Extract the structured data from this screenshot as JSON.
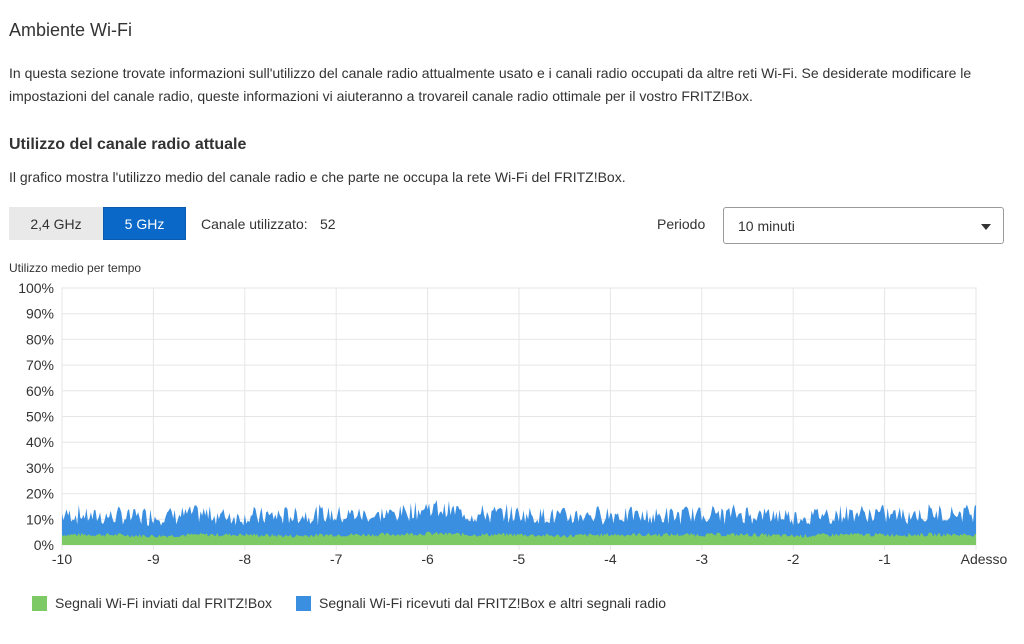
{
  "page": {
    "title": "Ambiente Wi-Fi",
    "intro": "In questa sezione trovate informazioni sull'utilizzo del canale radio attualmente usato e i canali radio occupati da altre reti Wi-Fi. Se desiderate modificare le impostazioni del canale radio, queste informazioni vi aiuteranno a trovareil canale radio ottimale per il vostro FRITZ!Box."
  },
  "section": {
    "title": "Utilizzo del canale radio attuale",
    "description": "Il grafico mostra l'utilizzo medio del canale radio e che parte ne occupa la rete Wi-Fi del FRITZ!Box."
  },
  "band_tabs": [
    {
      "label": "2,4 GHz",
      "selected": false
    },
    {
      "label": "5 GHz",
      "selected": true
    }
  ],
  "channel": {
    "label": "Canale utilizzato:",
    "value": "52"
  },
  "period": {
    "label": "Periodo",
    "selected": "10 minuti",
    "icon": "chevron-down-icon"
  },
  "colors": {
    "accent": "#0a68c8",
    "sent": "#7dc965",
    "received": "#3b8fe0"
  },
  "chart_data": {
    "type": "area",
    "title": "Utilizzo medio per tempo",
    "xlabel": "",
    "ylabel": "",
    "x_ticks": [
      "-10",
      "-9",
      "-8",
      "-7",
      "-6",
      "-5",
      "-4",
      "-3",
      "-2",
      "-1",
      "Adesso"
    ],
    "xlim": [
      -10,
      0
    ],
    "y_ticks": [
      "0%",
      "10%",
      "20%",
      "30%",
      "40%",
      "50%",
      "60%",
      "70%",
      "80%",
      "90%",
      "100%"
    ],
    "ylim": [
      0,
      100
    ],
    "grid": true,
    "stacked": true,
    "series": [
      {
        "name": "Segnali Wi-Fi inviati dal FRITZ!Box",
        "color": "#7dc965",
        "x": [
          -10,
          -9.5,
          -9,
          -8.5,
          -8,
          -7.5,
          -7,
          -6.5,
          -6,
          -5.5,
          -5,
          -4.5,
          -4,
          -3.5,
          -3,
          -2.5,
          -2,
          -1.5,
          -1,
          -0.5,
          0
        ],
        "values": [
          4,
          4,
          3.5,
          4,
          4,
          3.5,
          4,
          4,
          4.5,
          4,
          4,
          3.5,
          4,
          4,
          4,
          4,
          3.5,
          4,
          4,
          4,
          4
        ]
      },
      {
        "name": "Segnali Wi-Fi ricevuti dal FRITZ!Box e altri segnali radio",
        "color": "#3b8fe0",
        "x": [
          -10,
          -9.5,
          -9,
          -8.5,
          -8,
          -7.5,
          -7,
          -6.5,
          -6,
          -5.5,
          -5,
          -4.5,
          -4,
          -3.5,
          -3,
          -2.5,
          -2,
          -1.5,
          -1,
          -0.5,
          0
        ],
        "values": [
          8,
          7,
          8,
          8,
          7,
          8,
          8,
          7.5,
          10,
          8,
          8,
          7.5,
          8,
          7,
          8,
          8,
          7.5,
          8,
          8,
          8,
          9
        ]
      }
    ],
    "legend_position": "bottom-left"
  }
}
